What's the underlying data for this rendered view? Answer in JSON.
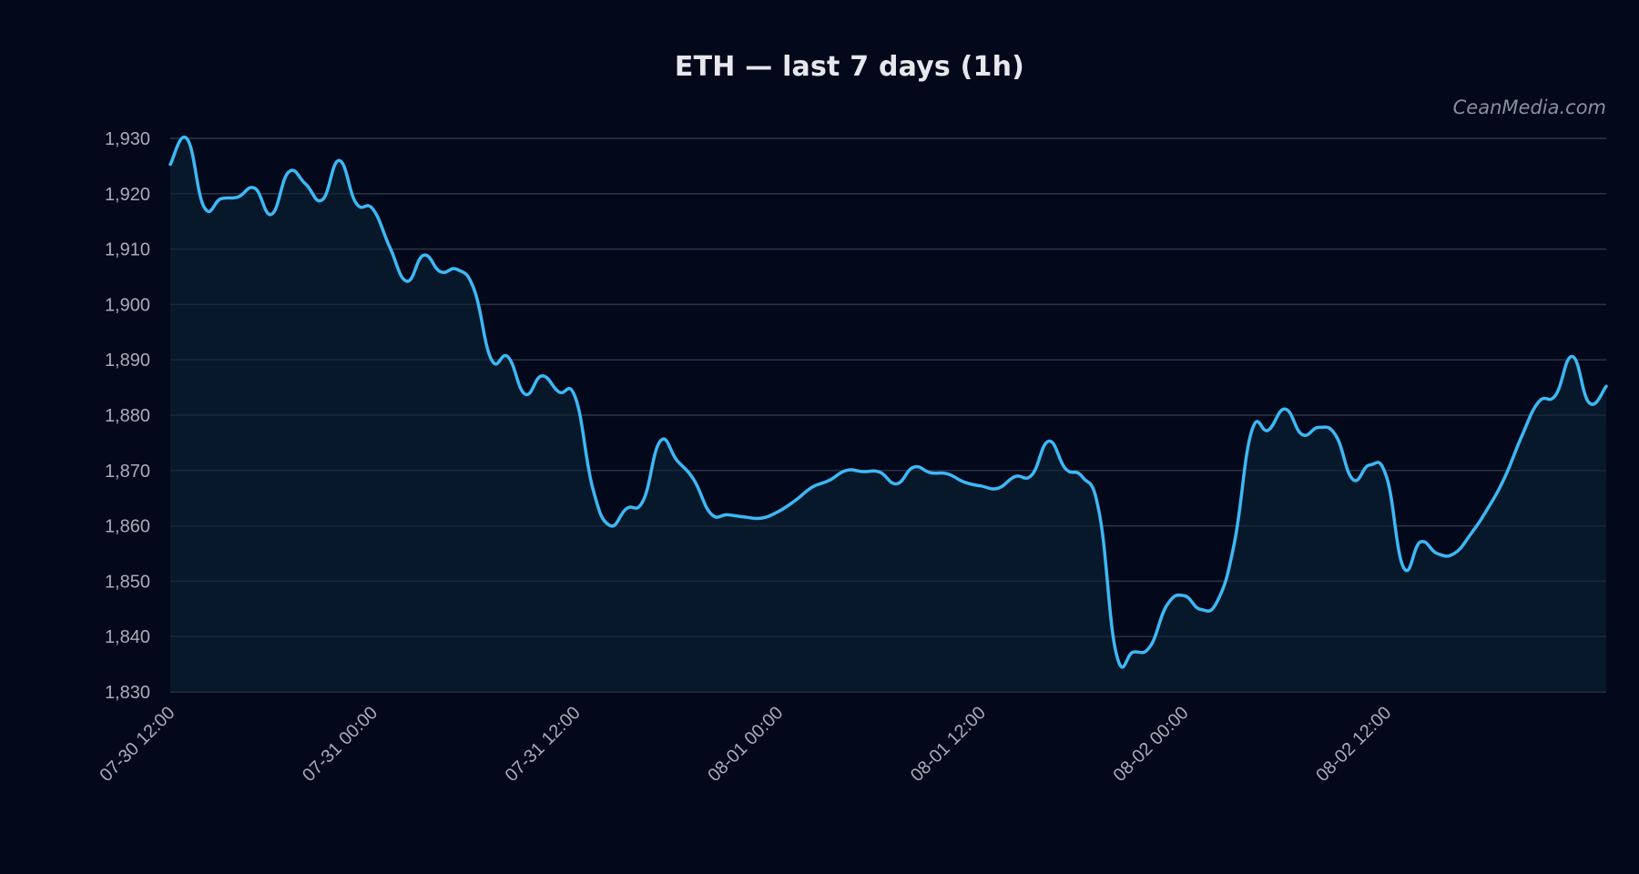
{
  "chart_data": {
    "type": "area",
    "title": "ETH — last 7 days (1h)",
    "xlabel": "",
    "ylabel": "",
    "x_start": "07-30 12:00",
    "x_interval": "1h",
    "x_ticks": [
      "07-30 12:00",
      "07-31 00:00",
      "07-31 12:00",
      "08-01 00:00",
      "08-01 12:00",
      "08-02 00:00",
      "08-02 12:00"
    ],
    "y_ticks": [
      "1,830",
      "1,840",
      "1,850",
      "1,860",
      "1,870",
      "1,880",
      "1,890",
      "1,900",
      "1,910",
      "1,920",
      "1,930"
    ],
    "ylim": [
      1830,
      1930
    ],
    "grid": "horizontal",
    "series": [
      {
        "values": [
          1925.3,
          1929.9,
          1917.6,
          1919.1,
          1919.4,
          1921.0,
          1916.3,
          1923.9,
          1921.8,
          1918.9,
          1926.0,
          1918.3,
          1917.2,
          1910.3,
          1904.2,
          1908.9,
          1905.9,
          1906.3,
          1902.6,
          1890.1,
          1890.5,
          1883.8,
          1887.1,
          1884.2,
          1883.0,
          1866.9,
          1860.1,
          1863.1,
          1864.6,
          1875.3,
          1871.8,
          1868.3,
          1862.2,
          1862.0,
          1861.6,
          1861.4,
          1862.6,
          1864.6,
          1867.0,
          1868.2,
          1870.0,
          1869.8,
          1869.7,
          1867.6,
          1870.6,
          1869.6,
          1869.4,
          1867.9,
          1867.2,
          1866.8,
          1868.9,
          1869.2,
          1875.3,
          1870.3,
          1868.8,
          1862.2,
          1836.9,
          1837.2,
          1838.2,
          1845.7,
          1847.4,
          1844.9,
          1846.5,
          1857.1,
          1877.0,
          1877.3,
          1881.1,
          1876.5,
          1877.8,
          1876.3,
          1868.4,
          1871.0,
          1868.8,
          1852.5,
          1857.1,
          1855.0,
          1855.0,
          1858.6,
          1863.2,
          1868.8,
          1876.2,
          1882.4,
          1883.6,
          1890.6,
          1882.2,
          1885.2
        ]
      }
    ],
    "colors": {
      "line": "#3db8f5",
      "area_fill": "#07182a",
      "background": "#03081a",
      "grid": "#2a3446"
    },
    "watermark": "CeanMedia.com"
  }
}
